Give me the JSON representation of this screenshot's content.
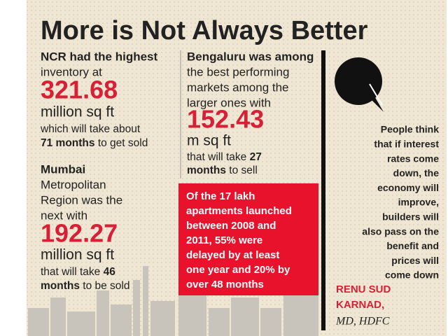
{
  "title": "More is Not Always Better",
  "ncr": {
    "lead": "NCR had the highest",
    "line": "inventory at",
    "figure": "321.68",
    "unit": "million sq ft",
    "note": "which will take about",
    "months": "71 months",
    "tail": "to get sold"
  },
  "mumbai": {
    "lead": "Mumbai",
    "lines": [
      "Metropolitan",
      "Region was the",
      "next with"
    ],
    "figure": "192.27",
    "unit": "million sq ft",
    "note": "that will take",
    "number": "46",
    "months": "months",
    "tail": "to be sold"
  },
  "bengaluru": {
    "lead": "Bengaluru was among",
    "lines": [
      "the best performing",
      "markets among the",
      "larger ones with"
    ],
    "figure": "152.43",
    "unit": "m sq ft",
    "note": "that will take",
    "number": "27",
    "months": "months",
    "tail": "to sell"
  },
  "highlight": {
    "lines": [
      "Of the 17 lakh",
      "apartments launched",
      "between 2008 and",
      "2011, 55% were",
      "delayed by at least",
      "one year and 20% by",
      "over 48 months"
    ]
  },
  "quote": {
    "lines": [
      "People think",
      "that if interest",
      "rates come",
      "down, the",
      "economy will",
      "improve,",
      "builders will",
      "also pass on the",
      "benefit and",
      "prices will",
      "come down"
    ],
    "author": [
      "RENU SUD",
      "KARNAD,"
    ],
    "role": "MD, HDFC"
  }
}
